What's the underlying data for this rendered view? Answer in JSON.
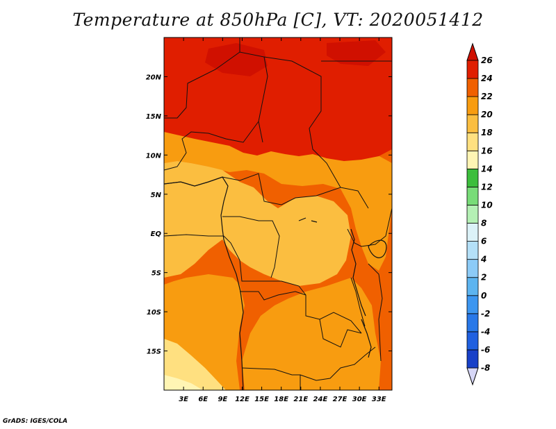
{
  "title": "Temperature at 850hPa [C], VT: 2020051412",
  "credit": "GrADS: IGES/COLA",
  "map": {
    "lon_range": [
      0,
      35
    ],
    "lat_range": [
      -20,
      25
    ],
    "lon_ticks": [
      {
        "value": 3,
        "label": "3E"
      },
      {
        "value": 6,
        "label": "6E"
      },
      {
        "value": 9,
        "label": "9E"
      },
      {
        "value": 12,
        "label": "12E"
      },
      {
        "value": 15,
        "label": "15E"
      },
      {
        "value": 18,
        "label": "18E"
      },
      {
        "value": 21,
        "label": "21E"
      },
      {
        "value": 24,
        "label": "24E"
      },
      {
        "value": 27,
        "label": "27E"
      },
      {
        "value": 30,
        "label": "30E"
      },
      {
        "value": 33,
        "label": "33E"
      }
    ],
    "lat_ticks": [
      {
        "value": 20,
        "label": "20N"
      },
      {
        "value": 15,
        "label": "15N"
      },
      {
        "value": 10,
        "label": "10N"
      },
      {
        "value": 5,
        "label": "5N"
      },
      {
        "value": 0,
        "label": "EQ"
      },
      {
        "value": -5,
        "label": "5S"
      },
      {
        "value": -10,
        "label": "10S"
      },
      {
        "value": -15,
        "label": "15S"
      }
    ]
  },
  "colorbar": {
    "labels": [
      "-8",
      "-6",
      "-4",
      "-2",
      "0",
      "2",
      "4",
      "6",
      "8",
      "10",
      "12",
      "14",
      "16",
      "18",
      "20",
      "22",
      "24",
      "26"
    ],
    "colors": [
      "#1a1aa0",
      "#1840c8",
      "#2060e0",
      "#2878e8",
      "#3c96f0",
      "#5cb4f0",
      "#8ccbf7",
      "#b4e0f8",
      "#dcf2f8",
      "#b4f0b4",
      "#78dc78",
      "#3cbe3c",
      "#fff5b4",
      "#ffe080",
      "#fbbe40",
      "#f89c10",
      "#f06000",
      "#e01e00"
    ],
    "lower_extend_color": "#d6d6f6",
    "upper_extend_color": "#d01000"
  }
}
